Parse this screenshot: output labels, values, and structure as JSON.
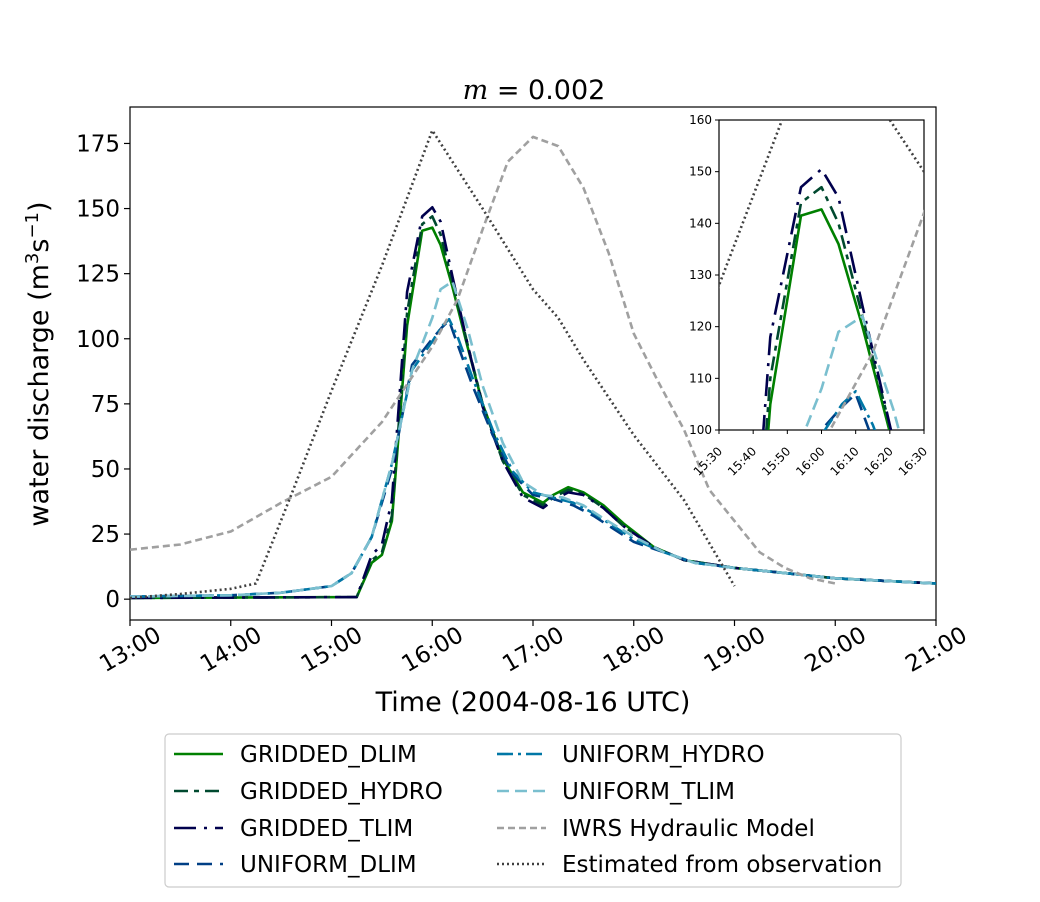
{
  "chart_data": [
    {
      "type": "line",
      "title_var": "m",
      "title_eq": " = 0.002",
      "xlabel": "Time (2004-08-16 UTC)",
      "ylabel_prefix": "water discharge (m",
      "ylabel_sup1": "3",
      "ylabel_mid": "s",
      "ylabel_sup2": "−1",
      "ylabel_suffix": ")",
      "xlim": [
        13,
        21
      ],
      "ylim": [
        -8,
        189
      ],
      "x_ticks": [
        13,
        14,
        15,
        16,
        17,
        18,
        19,
        20,
        21
      ],
      "x_tick_labels": [
        "13:00",
        "14:00",
        "15:00",
        "16:00",
        "17:00",
        "18:00",
        "19:00",
        "20:00",
        "21:00"
      ],
      "y_ticks": [
        0,
        25,
        50,
        75,
        100,
        125,
        150,
        175
      ],
      "y_tick_labels": [
        "0",
        "25",
        "50",
        "75",
        "100",
        "125",
        "150",
        "175"
      ],
      "grid": false,
      "legend_position": "below plot, two columns",
      "series": [
        {
          "name": "GRIDDED_DLIM",
          "color": "#008000",
          "dash": "solid",
          "x": [
            13,
            15.25,
            15.4,
            15.5,
            15.6,
            15.75,
            15.9,
            16.0,
            16.083,
            16.2,
            16.35,
            16.5,
            16.7,
            16.9,
            17.1,
            17.2,
            17.35,
            17.5,
            17.7,
            17.9,
            18.2,
            18.5,
            19.0,
            19.5,
            20.0,
            20.5,
            21.0
          ],
          "y": [
            0.5,
            0.8,
            14,
            17,
            30,
            105,
            141.5,
            142.7,
            136,
            120,
            97,
            75,
            54,
            41,
            37,
            40,
            43,
            41,
            36,
            29,
            20,
            15,
            12,
            10,
            8,
            7,
            6
          ]
        },
        {
          "name": "GRIDDED_HYDRO",
          "color": "#00492f",
          "dash": "14,6,5,6",
          "x": [
            13,
            15.25,
            15.4,
            15.5,
            15.6,
            15.75,
            15.9,
            16.0,
            16.083,
            16.2,
            16.35,
            16.5,
            16.7,
            16.9,
            17.1,
            17.2,
            17.35,
            17.5,
            17.7,
            17.9,
            18.2,
            18.5,
            19.0,
            19.5,
            20.0,
            20.5,
            21.0
          ],
          "y": [
            0.5,
            0.8,
            15,
            18,
            32,
            110,
            144,
            147,
            140,
            122,
            98,
            75,
            53,
            40,
            36,
            39,
            42,
            40.5,
            35,
            28,
            20,
            15,
            12,
            10,
            8,
            7,
            6
          ]
        },
        {
          "name": "GRIDDED_TLIM",
          "color": "#00004d",
          "dash": "22,8,3,8",
          "x": [
            13,
            15.25,
            15.4,
            15.5,
            15.6,
            15.75,
            15.9,
            16.0,
            16.083,
            16.2,
            16.35,
            16.5,
            16.7,
            16.9,
            17.1,
            17.2,
            17.35,
            17.5,
            17.7,
            17.9,
            18.2,
            18.5,
            19.0,
            19.5,
            20.0,
            20.5,
            21.0
          ],
          "y": [
            0.5,
            0.8,
            17,
            21,
            38,
            118,
            147,
            150.5,
            145,
            124,
            98,
            74,
            53,
            39,
            35,
            38,
            41,
            40,
            35,
            28,
            20,
            15,
            12,
            10,
            8,
            7,
            6
          ]
        },
        {
          "name": "UNIFORM_DLIM",
          "color": "#003f85",
          "dash": "15,8",
          "x": [
            13,
            14,
            14.5,
            15.0,
            15.2,
            15.4,
            15.6,
            15.8,
            16.0,
            16.1,
            16.167,
            16.25,
            16.4,
            16.6,
            16.8,
            17.0,
            17.2,
            17.4,
            17.6,
            17.8,
            18.0,
            18.3,
            18.6,
            19.0,
            19.5,
            20.0,
            20.5,
            21.0
          ],
          "y": [
            1,
            1.5,
            2.5,
            5,
            10,
            24,
            50,
            90,
            100,
            104.5,
            107,
            98,
            82,
            63,
            48,
            40,
            38.5,
            36,
            32,
            27,
            22,
            18,
            14,
            12,
            10,
            8,
            7,
            6
          ]
        },
        {
          "name": "UNIFORM_HYDRO",
          "color": "#0077a6",
          "dash": "16,5,3,5",
          "x": [
            13,
            14,
            14.5,
            15.0,
            15.2,
            15.4,
            15.6,
            15.8,
            16.0,
            16.1,
            16.167,
            16.25,
            16.4,
            16.6,
            16.8,
            17.0,
            17.2,
            17.4,
            17.6,
            17.8,
            18.0,
            18.3,
            18.6,
            19.0,
            19.5,
            20.0,
            20.5,
            21.0
          ],
          "y": [
            1,
            1.5,
            2.5,
            5,
            10,
            24,
            52,
            88,
            99,
            105,
            107.5,
            101,
            85,
            65,
            49,
            41,
            39,
            37,
            33,
            28,
            23,
            18,
            14,
            12,
            10,
            8,
            7,
            6
          ]
        },
        {
          "name": "UNIFORM_TLIM",
          "color": "#7abfcf",
          "dash": "12,6",
          "x": [
            13,
            14,
            14.5,
            15.0,
            15.2,
            15.4,
            15.6,
            15.8,
            16.0,
            16.083,
            16.2,
            16.35,
            16.5,
            16.7,
            16.9,
            17.1,
            17.3,
            17.5,
            17.7,
            18.0,
            18.3,
            18.6,
            19.0,
            19.5,
            20.0,
            20.5,
            21.0
          ],
          "y": [
            1,
            1.5,
            2.5,
            5,
            10,
            24,
            52,
            88,
            108,
            119,
            122,
            104,
            82,
            60,
            45,
            40,
            39,
            36,
            31,
            24,
            18,
            14,
            12,
            10,
            8,
            7,
            6
          ]
        },
        {
          "name": "IWRS Hydraulic Model",
          "color": "#a0a0a0",
          "dash": "7,4",
          "x": [
            13,
            13.5,
            14,
            14.5,
            15.0,
            15.5,
            16.0,
            16.25,
            16.5,
            16.75,
            17.0,
            17.25,
            17.5,
            17.75,
            18.0,
            18.25,
            18.5,
            18.75,
            19.0,
            19.25,
            19.5,
            19.75,
            20.0
          ],
          "y": [
            19,
            21,
            26,
            37,
            47,
            68,
            97,
            115,
            142,
            168,
            177.5,
            174,
            158,
            133,
            102,
            83,
            65,
            42,
            30,
            18,
            12,
            8,
            6
          ]
        },
        {
          "name": "Estimated from observation",
          "color": "#404040",
          "dash": "2,3",
          "x": [
            13,
            13.5,
            14.0,
            14.25,
            14.6,
            15.0,
            15.5,
            16.0,
            16.5,
            17.0,
            17.25,
            17.5,
            18.0,
            18.5,
            19.0
          ],
          "y": [
            0.5,
            2,
            4,
            6,
            40,
            80,
            128,
            180,
            150,
            119,
            108,
            92,
            63,
            38,
            5
          ]
        }
      ]
    },
    {
      "type": "line",
      "role": "inset zoom",
      "xlim": [
        15.5,
        16.5
      ],
      "ylim": [
        100,
        160
      ],
      "x_ticks": [
        15.5,
        15.6667,
        15.8333,
        16.0,
        16.1667,
        16.3333,
        16.5
      ],
      "x_tick_labels": [
        "15:30",
        "15:40",
        "15:50",
        "16:00",
        "16:10",
        "16:20",
        "16:30"
      ],
      "y_ticks": [
        100,
        110,
        120,
        130,
        140,
        150,
        160
      ],
      "y_tick_labels": [
        "100",
        "110",
        "120",
        "130",
        "140",
        "150",
        "160"
      ],
      "grid": false,
      "series_ref": "same series as main chart"
    }
  ]
}
